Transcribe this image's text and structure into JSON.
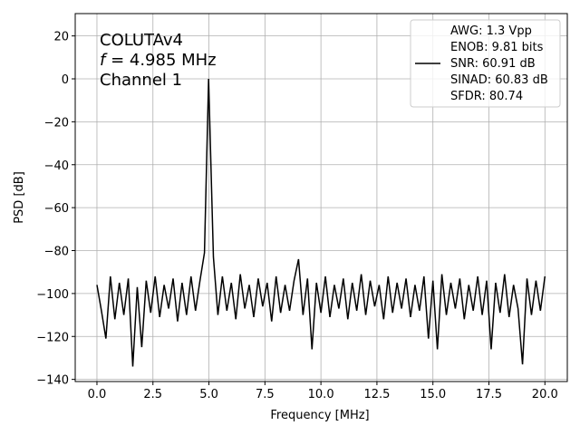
{
  "chart_data": {
    "type": "line",
    "xlabel": "Frequency [MHz]",
    "ylabel": "PSD [dB]",
    "annotation": [
      "COLUTAv4",
      "f = 4.985 MHz",
      "Channel 1"
    ],
    "x": [
      0,
      0.2,
      0.4,
      0.6,
      0.8,
      1.0,
      1.2,
      1.4,
      1.6,
      1.8,
      2.0,
      2.2,
      2.4,
      2.6,
      2.8,
      3.0,
      3.2,
      3.4,
      3.6,
      3.8,
      4.0,
      4.2,
      4.4,
      4.6,
      4.8,
      4.985,
      5.2,
      5.4,
      5.6,
      5.8,
      6.0,
      6.2,
      6.4,
      6.6,
      6.8,
      7.0,
      7.2,
      7.4,
      7.6,
      7.8,
      8.0,
      8.2,
      8.4,
      8.6,
      8.8,
      9.0,
      9.2,
      9.4,
      9.6,
      9.8,
      10.0,
      10.2,
      10.4,
      10.6,
      10.8,
      11.0,
      11.2,
      11.4,
      11.6,
      11.8,
      12.0,
      12.2,
      12.4,
      12.6,
      12.8,
      13.0,
      13.2,
      13.4,
      13.6,
      13.8,
      14.0,
      14.2,
      14.4,
      14.6,
      14.8,
      15.0,
      15.2,
      15.4,
      15.6,
      15.8,
      16.0,
      16.2,
      16.4,
      16.6,
      16.8,
      17.0,
      17.2,
      17.4,
      17.6,
      17.8,
      18.0,
      18.2,
      18.4,
      18.6,
      18.8,
      19.0,
      19.2,
      19.4,
      19.6,
      19.8,
      20.0
    ],
    "series": [
      {
        "name": "AWG: 1.3 Vpp\nENOB: 9.81 bits\nSNR: 60.91 dB\nSINAD: 60.83 dB\nSFDR: 80.74",
        "color": "#000000",
        "values": [
          -96,
          -108,
          -121,
          -92,
          -112,
          -95,
          -110,
          -93,
          -134,
          -97,
          -125,
          -94,
          -109,
          -92,
          -111,
          -96,
          -107,
          -93,
          -113,
          -95,
          -110,
          -92,
          -108,
          -94,
          -81,
          0,
          -83,
          -110,
          -92,
          -108,
          -95,
          -112,
          -91,
          -107,
          -96,
          -111,
          -93,
          -106,
          -95,
          -113,
          -92,
          -109,
          -96,
          -108,
          -94,
          -84,
          -110,
          -93,
          -126,
          -95,
          -109,
          -92,
          -111,
          -96,
          -107,
          -93,
          -112,
          -95,
          -108,
          -91,
          -110,
          -94,
          -106,
          -96,
          -112,
          -92,
          -109,
          -95,
          -107,
          -93,
          -111,
          -96,
          -108,
          -92,
          -121,
          -94,
          -126,
          -91,
          -110,
          -95,
          -107,
          -93,
          -112,
          -96,
          -108,
          -92,
          -110,
          -94,
          -126,
          -95,
          -109,
          -91,
          -111,
          -96,
          -107,
          -133,
          -93,
          -110,
          -94,
          -108,
          -92
        ]
      }
    ],
    "xlim": [
      -0.97,
      21.0
    ],
    "ylim": [
      -141,
      30.4
    ],
    "xticks": [
      {
        "value": 0,
        "label": "0.0"
      },
      {
        "value": 2.5,
        "label": "2.5"
      },
      {
        "value": 5,
        "label": "5.0"
      },
      {
        "value": 7.5,
        "label": "7.5"
      },
      {
        "value": 10,
        "label": "10.0"
      },
      {
        "value": 12.5,
        "label": "12.5"
      },
      {
        "value": 15,
        "label": "15.0"
      },
      {
        "value": 17.5,
        "label": "17.5"
      },
      {
        "value": 20,
        "label": "20.0"
      }
    ],
    "yticks": [
      {
        "value": -140,
        "label": "−140"
      },
      {
        "value": -120,
        "label": "−120"
      },
      {
        "value": -100,
        "label": "−100"
      },
      {
        "value": -80,
        "label": "−80"
      },
      {
        "value": -60,
        "label": "−60"
      },
      {
        "value": -40,
        "label": "−40"
      },
      {
        "value": -20,
        "label": "−20"
      },
      0,
      20
    ],
    "grid": true,
    "legend": "upper right"
  }
}
